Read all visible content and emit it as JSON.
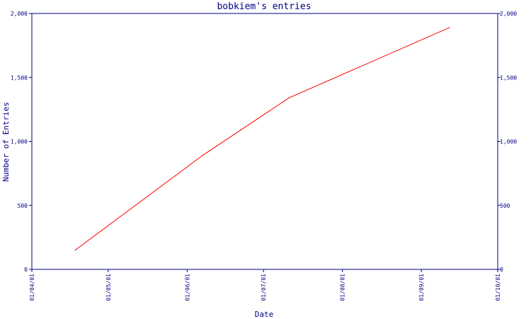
{
  "chart_data": {
    "type": "line",
    "title": "bobkiem's entries",
    "xlabel": "Date",
    "ylabel": "Number of Entries",
    "x_ticks": [
      "01/04/01",
      "01/05/01",
      "01/06/01",
      "01/07/01",
      "01/08/01",
      "01/09/01",
      "01/10/01"
    ],
    "x_range": [
      "2001-04-01",
      "2001-10-01"
    ],
    "y_ticks_left": [
      "0",
      "500",
      "1,000",
      "1,500",
      "2,000"
    ],
    "y_ticks_right": [
      "0",
      "500",
      "1,000",
      "1,500",
      "2,000"
    ],
    "ylim": [
      0,
      2000
    ],
    "grid": false,
    "right_axis": true,
    "series": [
      {
        "color": "#ff0000",
        "points": [
          {
            "x": "2001-04-18",
            "y": 150
          },
          {
            "x": "2001-06-07",
            "y": 890
          },
          {
            "x": "2001-07-11",
            "y": 1340
          },
          {
            "x": "2001-09-12",
            "y": 1890
          }
        ]
      }
    ]
  },
  "colors": {
    "axis": "#000080",
    "text": "#000080",
    "background": "#ffffff"
  }
}
